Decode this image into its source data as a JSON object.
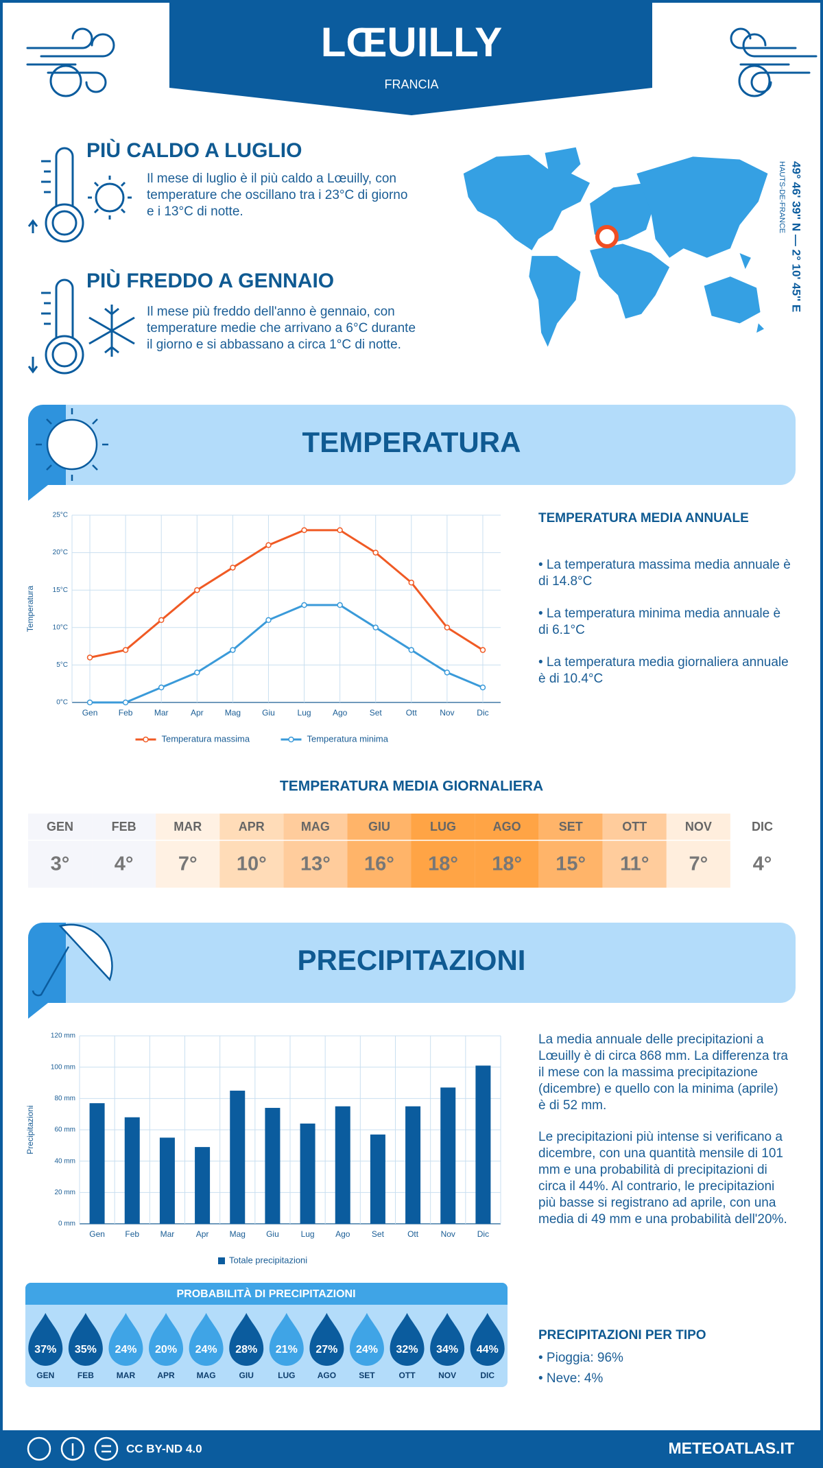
{
  "header": {
    "title": "LŒUILLY",
    "subtitle": "FRANCIA"
  },
  "highlights": [
    {
      "title": "PIÙ CALDO A LUGLIO",
      "text": "Il mese di luglio è il più caldo a Lœuilly, con temperature che oscillano tra i 23°C di giorno e i 13°C di notte."
    },
    {
      "title": "PIÙ FREDDO A GENNAIO",
      "text": "Il mese più freddo dell'anno è gennaio, con temperature medie che arrivano a 6°C durante il giorno e si abbassano a circa 1°C di notte."
    }
  ],
  "location": {
    "coordinates": "49° 46' 39'' N — 2° 10' 45'' E",
    "region": "HAUTS-DE-FRANCE"
  },
  "temperature_section": {
    "title": "TEMPERATURA",
    "annual_title": "TEMPERATURA MEDIA ANNUALE",
    "annual_items": [
      "• La temperatura massima media annuale è di 14.8°C",
      "• La temperatura minima media annuale è di 6.1°C",
      "• La temperatura media giornaliera annuale è di 10.4°C"
    ]
  },
  "chart_data": [
    {
      "type": "line",
      "y_label": "Temperatura",
      "categories": [
        "Gen",
        "Feb",
        "Mar",
        "Apr",
        "Mag",
        "Giu",
        "Lug",
        "Ago",
        "Set",
        "Ott",
        "Nov",
        "Dic"
      ],
      "series": [
        {
          "name": "Temperatura massima",
          "color": "#f05a24",
          "values": [
            6,
            7,
            11,
            15,
            18,
            21,
            23,
            23,
            20,
            16,
            10,
            7
          ]
        },
        {
          "name": "Temperatura minima",
          "color": "#3a9ad9",
          "values": [
            0,
            0,
            2,
            4,
            7,
            11,
            13,
            13,
            10,
            7,
            4,
            2
          ]
        }
      ],
      "ylim": [
        0,
        25
      ],
      "yticks": [
        {
          "value": 0,
          "label": "0°C"
        },
        {
          "value": 5,
          "label": "5°C"
        },
        {
          "value": 10,
          "label": "10°C"
        },
        {
          "value": 15,
          "label": "15°C"
        },
        {
          "value": 20,
          "label": "20°C"
        },
        {
          "value": 25,
          "label": "25°C"
        }
      ],
      "grid": true
    },
    {
      "type": "bar",
      "y_label": "Precipitazioni",
      "categories": [
        "Gen",
        "Feb",
        "Mar",
        "Apr",
        "Mag",
        "Giu",
        "Lug",
        "Ago",
        "Set",
        "Ott",
        "Nov",
        "Dic"
      ],
      "series": [
        {
          "name": "Totale precipitazioni",
          "color": "#0b5c9e",
          "values": [
            77,
            68,
            55,
            49,
            85,
            74,
            64,
            75,
            57,
            75,
            87,
            101
          ]
        }
      ],
      "ylim": [
        0,
        120
      ],
      "yticks": [
        {
          "value": 0,
          "label": "0 mm"
        },
        {
          "value": 20,
          "label": "20 mm"
        },
        {
          "value": 40,
          "label": "40 mm"
        },
        {
          "value": 60,
          "label": "60 mm"
        },
        {
          "value": 80,
          "label": "80 mm"
        },
        {
          "value": 100,
          "label": "100 mm"
        },
        {
          "value": 120,
          "label": "120 mm"
        }
      ],
      "grid": true
    }
  ],
  "daily_mean": {
    "title": "TEMPERATURA MEDIA GIORNALIERA",
    "months": [
      "GEN",
      "FEB",
      "MAR",
      "APR",
      "MAG",
      "GIU",
      "LUG",
      "AGO",
      "SET",
      "OTT",
      "NOV",
      "DIC"
    ],
    "values": [
      3,
      4,
      7,
      10,
      13,
      16,
      18,
      18,
      15,
      11,
      7,
      4
    ],
    "value_labels": [
      "3°",
      "4°",
      "7°",
      "10°",
      "13°",
      "16°",
      "18°",
      "18°",
      "15°",
      "11°",
      "7°",
      "4°"
    ],
    "colors": [
      "#f5f6fb",
      "#f5f6fb",
      "#fff1e3",
      "#ffdcb8",
      "#ffcc9c",
      "#ffb469",
      "#ffa445",
      "#ffa445",
      "#ffb469",
      "#ffcc9c",
      "#ffeedd",
      "#ffffff"
    ]
  },
  "precipitation_section": {
    "title": "PRECIPITAZIONI",
    "paragraphs": [
      "La media annuale delle precipitazioni a Lœuilly è di circa 868 mm. La differenza tra il mese con la massima precipitazione (dicembre) e quello con la minima (aprile) è di 52 mm.",
      "Le precipitazioni più intense si verificano a dicembre, con una quantità mensile di 101 mm e una probabilità di precipitazioni di circa il 44%. Al contrario, le precipitazioni più basse si registrano ad aprile, con una media di 49 mm e una probabilità dell'20%."
    ],
    "type_title": "PRECIPITAZIONI PER TIPO",
    "types": [
      "• Pioggia: 96%",
      "• Neve: 4%"
    ]
  },
  "probability": {
    "title": "PROBABILITÀ DI PRECIPITAZIONI",
    "months": [
      "GEN",
      "FEB",
      "MAR",
      "APR",
      "MAG",
      "GIU",
      "LUG",
      "AGO",
      "SET",
      "OTT",
      "NOV",
      "DIC"
    ],
    "values": [
      37,
      35,
      24,
      20,
      24,
      28,
      21,
      27,
      24,
      32,
      34,
      44
    ],
    "value_labels": [
      "37%",
      "35%",
      "24%",
      "20%",
      "24%",
      "28%",
      "21%",
      "27%",
      "24%",
      "32%",
      "34%",
      "44%"
    ],
    "colors": [
      "#0b5c9e",
      "#0b5c9e",
      "#3fa4e6",
      "#3fa4e6",
      "#3fa4e6",
      "#0b5c9e",
      "#3fa4e6",
      "#0b5c9e",
      "#3fa4e6",
      "#0b5c9e",
      "#0b5c9e",
      "#0b5c9e"
    ]
  },
  "footer": {
    "license": "CC BY-ND 4.0",
    "site": "METEOATLAS.IT"
  }
}
